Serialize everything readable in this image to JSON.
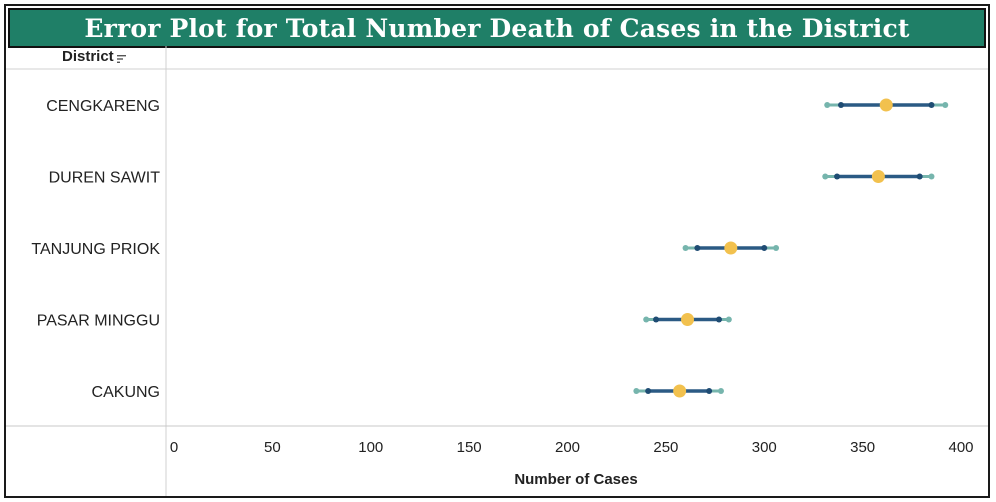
{
  "title": "Error Plot for Total Number Death of Cases in the District",
  "header": {
    "row_field_label": "District"
  },
  "icons": {
    "sort": "sort-descending-icon"
  },
  "colors": {
    "title_bg": "#1f7f67",
    "title_text": "#ffffff",
    "bar": "#2b5a84",
    "inner_point": "#1f4c73",
    "outer_point": "#76b5ad",
    "center_point": "#f2c14e"
  },
  "chart_data": {
    "type": "scatter",
    "subtype": "error-bar",
    "title": "Error Plot for Total Number Death of Cases in the District",
    "xlabel": "Number of Cases",
    "ylabel": "District",
    "xlim": [
      0,
      400
    ],
    "xticks": [
      0,
      50,
      100,
      150,
      200,
      250,
      300,
      350,
      400
    ],
    "categories": [
      "CENGKARENG",
      "DUREN SAWIT",
      "TANJUNG PRIOK",
      "PASAR MINGGU",
      "CAKUNG"
    ],
    "series": [
      {
        "name": "",
        "role": "outer_low",
        "values": [
          332,
          331,
          260,
          240,
          235
        ]
      },
      {
        "name": "",
        "role": "inner_low",
        "values": [
          339,
          337,
          266,
          245,
          241
        ]
      },
      {
        "name": "",
        "role": "center",
        "values": [
          362,
          358,
          283,
          261,
          257
        ]
      },
      {
        "name": "",
        "role": "inner_high",
        "values": [
          385,
          379,
          300,
          277,
          272
        ]
      },
      {
        "name": "",
        "role": "outer_high",
        "values": [
          392,
          385,
          306,
          282,
          278
        ]
      }
    ],
    "grid": false,
    "legend": "none"
  }
}
